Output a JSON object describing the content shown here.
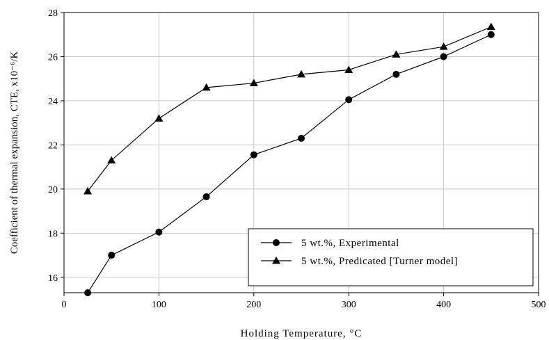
{
  "chart_data": {
    "type": "line",
    "xlabel": "Holding Temperature, °C",
    "ylabel": "Coefficient of thermal expansion, CTE, x10⁻⁶/K",
    "xlim": [
      0,
      500
    ],
    "ylim": [
      15.3,
      28
    ],
    "xticks": [
      0,
      100,
      200,
      300,
      400,
      500
    ],
    "yticks": [
      16,
      18,
      20,
      22,
      24,
      26,
      28
    ],
    "grid": true,
    "legend_position": "bottom-right",
    "series": [
      {
        "name": "5 wt.%, Experimental",
        "marker": "circle",
        "x": [
          25,
          50,
          100,
          150,
          200,
          250,
          300,
          350,
          400,
          450
        ],
        "y": [
          15.3,
          17.0,
          18.05,
          19.65,
          21.55,
          22.3,
          24.05,
          25.2,
          26.0,
          27.0
        ]
      },
      {
        "name": "5 wt.%, Predicated [Turner model]",
        "marker": "triangle",
        "x": [
          25,
          50,
          100,
          150,
          200,
          250,
          300,
          350,
          400,
          450
        ],
        "y": [
          19.9,
          21.3,
          23.2,
          24.6,
          24.8,
          25.2,
          25.4,
          26.1,
          26.45,
          27.35
        ]
      }
    ]
  }
}
